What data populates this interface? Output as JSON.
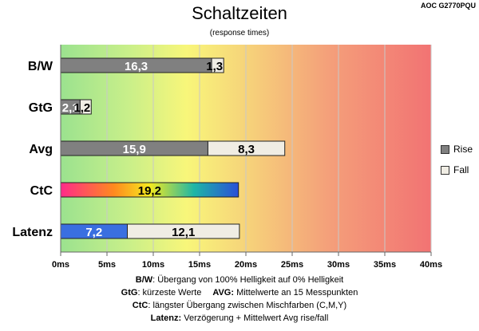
{
  "header": {
    "model": "AOC G2770PQU",
    "title": "Schaltzeiten",
    "subtitle": "(response times)"
  },
  "legend": [
    {
      "label": "Rise",
      "color": "#808080"
    },
    {
      "label": "Fall",
      "color": "#f0ede4"
    }
  ],
  "footnotes": {
    "line1_key": "B/W",
    "line1_text": ":  Übergang von 100% Helligkeit auf 0% Helligkeit",
    "line2a_key": "GtG",
    "line2a_text": ": kürzeste  Werte",
    "line2b_key": "AVG:",
    "line2b_text": " Mittelwerte  an 15 Messpunkten",
    "line3_key": "CtC",
    "line3_text": ": längster Übergang  zwischen Mischfarben (C,M,Y)",
    "line4_key": "Latenz:",
    "line4_text": " Verzögerung  + Mittelwert  Avg rise/fall"
  },
  "chart_data": {
    "type": "bar",
    "orientation": "horizontal",
    "stacked": true,
    "categories": [
      "B/W",
      "GtG",
      "Avg",
      "CtC",
      "Latenz"
    ],
    "series": [
      {
        "name": "Rise",
        "values": [
          16.3,
          2.1,
          15.9,
          null,
          7.2
        ],
        "labels": [
          "16,3",
          "2,1",
          "15,9",
          null,
          "7,2"
        ]
      },
      {
        "name": "Fall",
        "values": [
          1.3,
          1.2,
          8.3,
          null,
          12.1
        ],
        "labels": [
          "1,3",
          "1,2",
          "8,3",
          null,
          "12,1"
        ]
      },
      {
        "name": "CtC",
        "values": [
          null,
          null,
          null,
          19.2,
          null
        ],
        "labels": [
          null,
          null,
          null,
          "19,2",
          null
        ]
      }
    ],
    "colors": {
      "rise": "#808080",
      "fall": "#f0ede4",
      "latenz_rise": "#3a6fe0"
    },
    "xlim": [
      0,
      40
    ],
    "xticks": [
      0,
      5,
      10,
      15,
      20,
      25,
      30,
      35,
      40
    ],
    "xtick_labels": [
      "0ms",
      "5ms",
      "10ms",
      "15ms",
      "20ms",
      "25ms",
      "30ms",
      "35ms",
      "40ms"
    ],
    "background": "gradient green → yellow → red",
    "grid": true,
    "legend_position": "right"
  }
}
